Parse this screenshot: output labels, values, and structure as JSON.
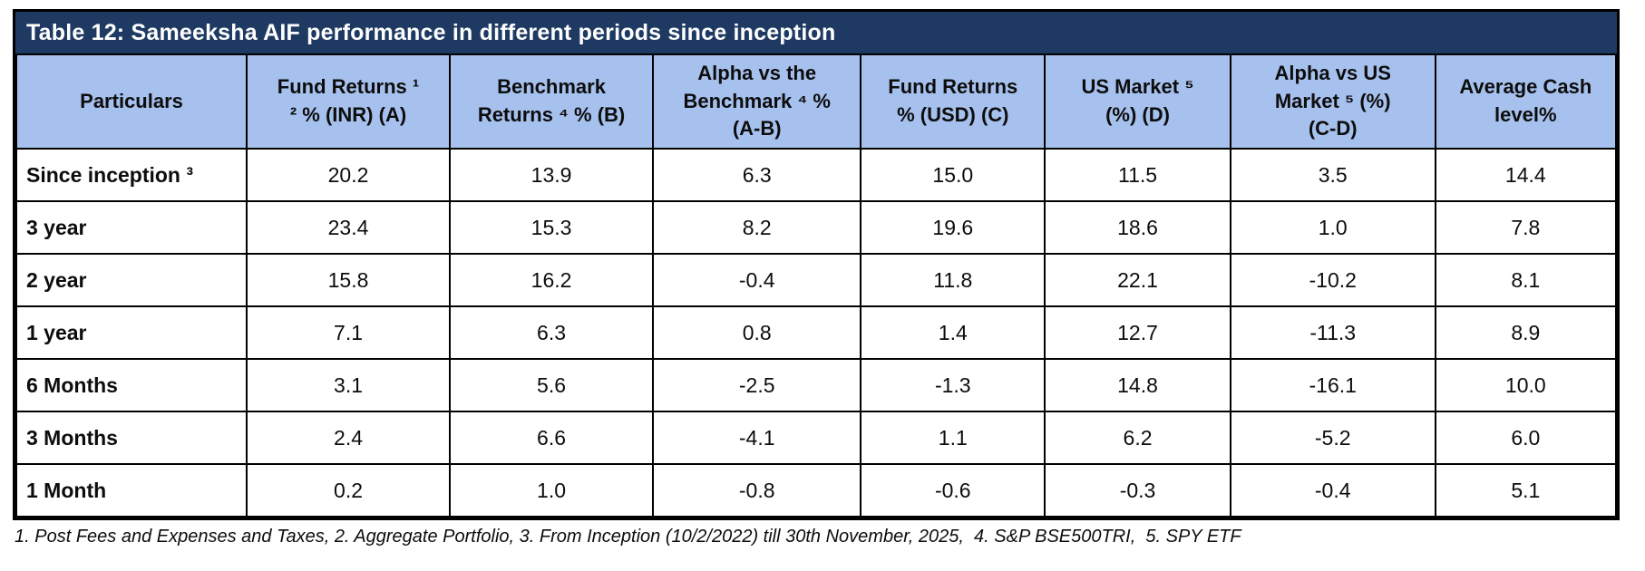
{
  "table": {
    "title": "Table 12: Sameeksha AIF performance in different periods since inception",
    "columns": [
      {
        "id": "particulars",
        "label": "Particulars"
      },
      {
        "id": "fund-returns-inr",
        "label": "Fund Returns ¹\n² % (INR) (A)"
      },
      {
        "id": "benchmark-returns",
        "label": "Benchmark\nReturns ⁴ % (B)"
      },
      {
        "id": "alpha-vs-benchmark",
        "label": "Alpha vs the\nBenchmark ⁴ %\n(A-B)"
      },
      {
        "id": "fund-returns-usd",
        "label": "Fund Returns\n% (USD) (C)"
      },
      {
        "id": "us-market",
        "label": "US Market ⁵\n(%) (D)"
      },
      {
        "id": "alpha-vs-us-market",
        "label": "Alpha vs US\nMarket ⁵ (%)\n(C-D)"
      },
      {
        "id": "average-cash-level",
        "label": "Average Cash\nlevel%"
      }
    ],
    "rows": [
      {
        "label": "Since inception ³",
        "values": [
          "20.2",
          "13.9",
          "6.3",
          "15.0",
          "11.5",
          "3.5",
          "14.4"
        ]
      },
      {
        "label": "3 year",
        "values": [
          "23.4",
          "15.3",
          "8.2",
          "19.6",
          "18.6",
          "1.0",
          "7.8"
        ]
      },
      {
        "label": "2 year",
        "values": [
          "15.8",
          "16.2",
          "-0.4",
          "11.8",
          "22.1",
          "-10.2",
          "8.1"
        ]
      },
      {
        "label": "1 year",
        "values": [
          "7.1",
          "6.3",
          "0.8",
          "1.4",
          "12.7",
          "-11.3",
          "8.9"
        ]
      },
      {
        "label": "6 Months",
        "values": [
          "3.1",
          "5.6",
          "-2.5",
          "-1.3",
          "14.8",
          "-16.1",
          "10.0"
        ]
      },
      {
        "label": "3 Months",
        "values": [
          "2.4",
          "6.6",
          "-4.1",
          "1.1",
          "6.2",
          "-5.2",
          "6.0"
        ]
      },
      {
        "label": "1 Month",
        "values": [
          "0.2",
          "1.0",
          "-0.8",
          "-0.6",
          "-0.3",
          "-0.4",
          "5.1"
        ]
      }
    ],
    "footnote": "1. Post Fees and Expenses and Taxes, 2. Aggregate Portfolio, 3. From Inception (10/2/2022) till 30th November, 2025,  4. S&P BSE500TRI,  5. SPY ETF"
  },
  "colors": {
    "title_bar_bg": "#1e3a62",
    "title_text": "#ffffff",
    "header_bg": "#a7c1ee",
    "border": "#000000"
  }
}
